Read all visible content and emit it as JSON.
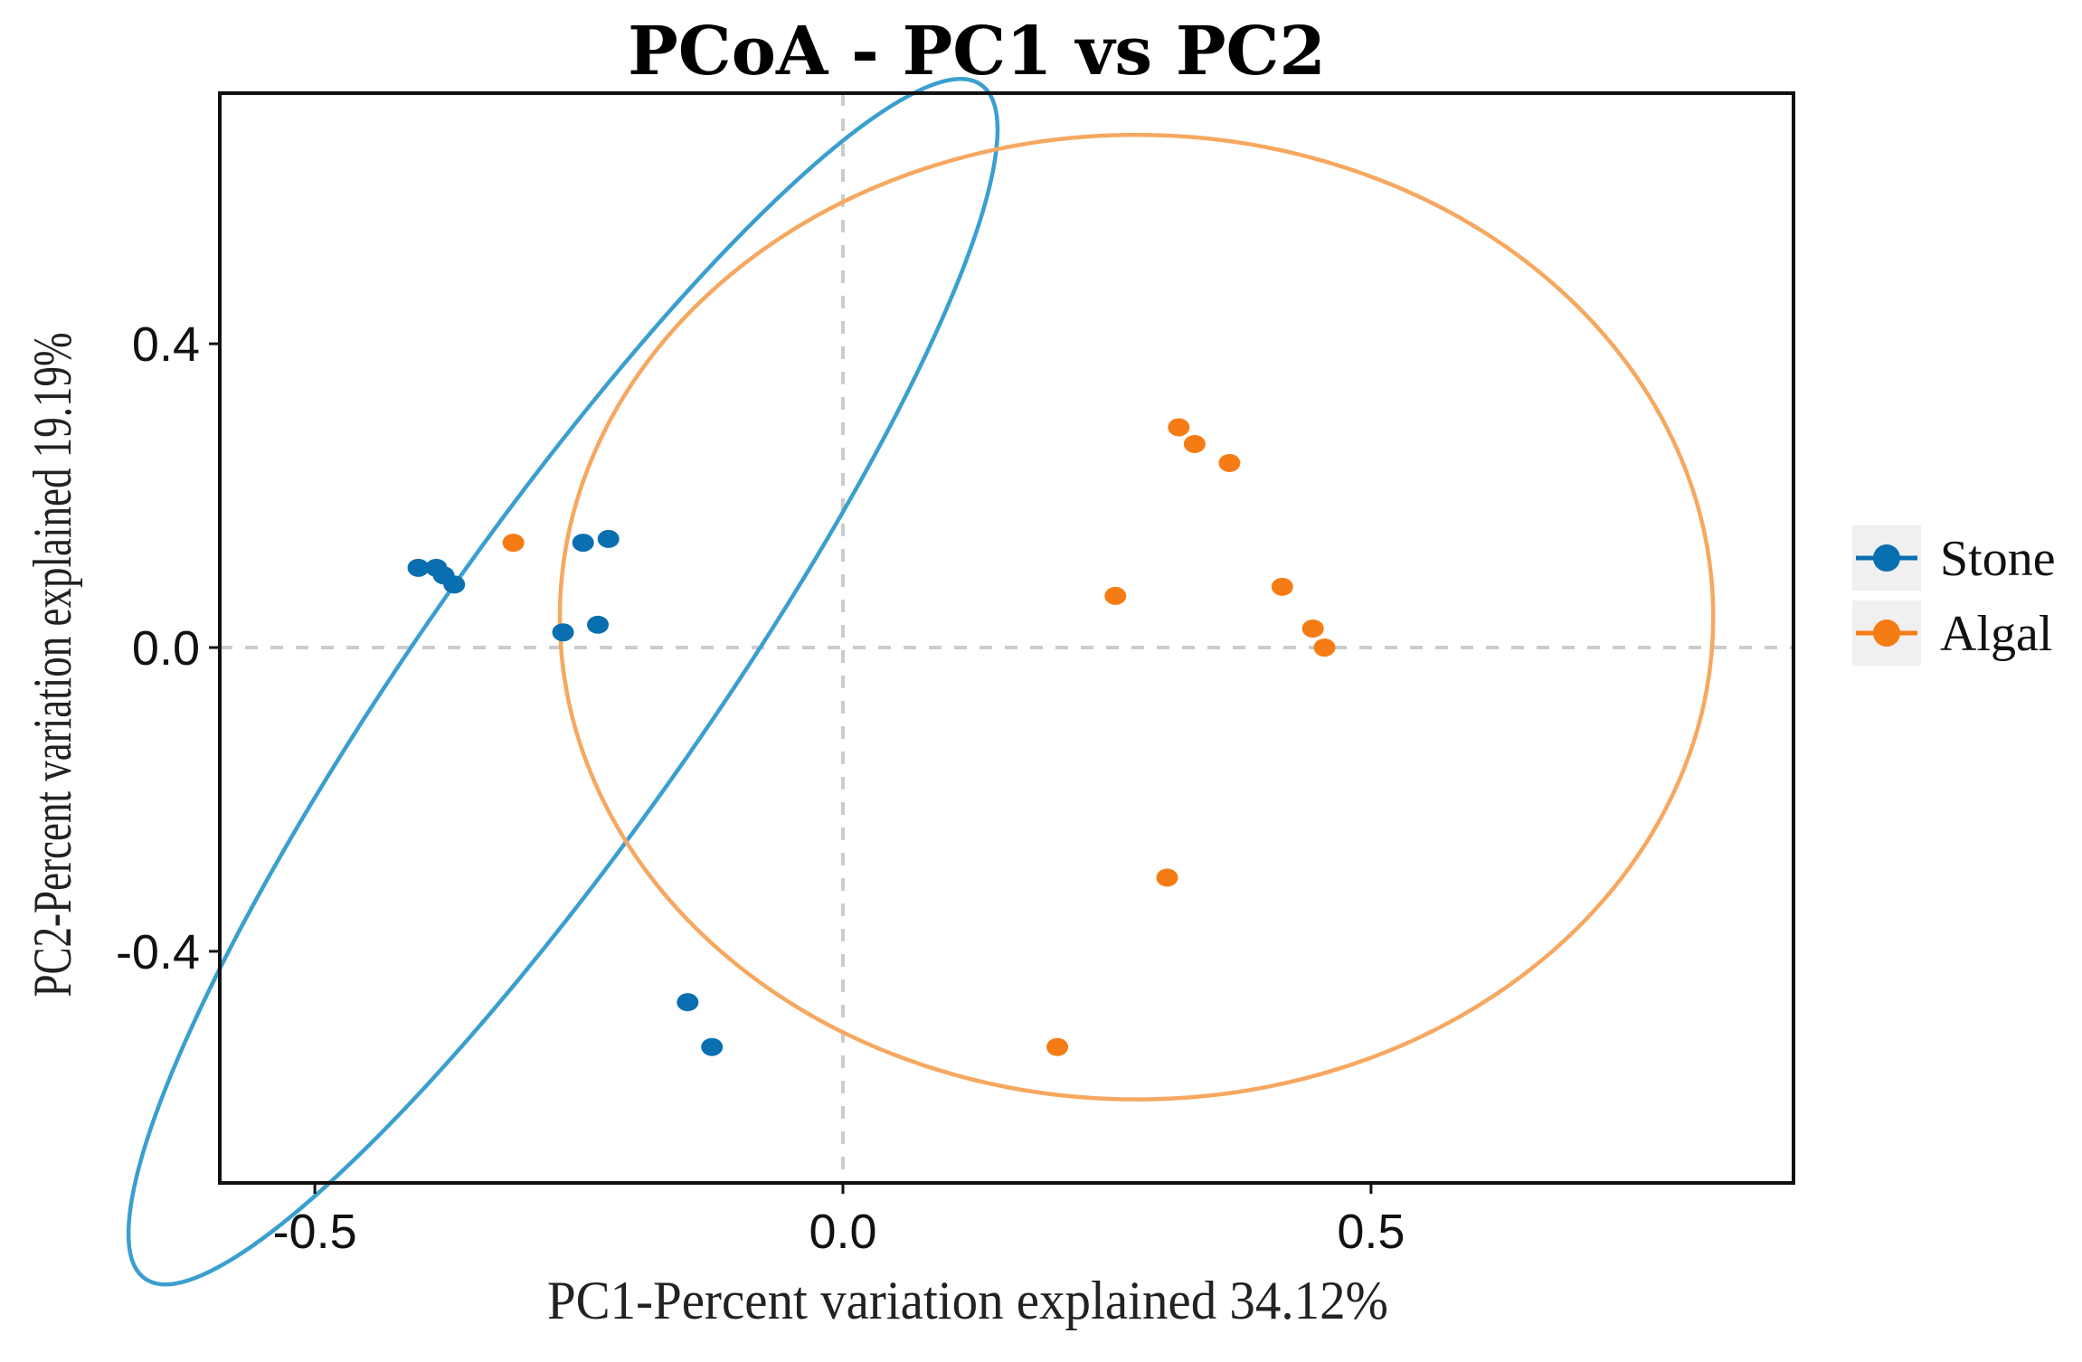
{
  "chart_data": {
    "type": "scatter",
    "title": "PCoA - PC1 vs PC2",
    "xlabel": "PC1-Percent variation explained 34.12%",
    "ylabel": "PC2-Percent variation explained 19.19%",
    "xlim": [
      -0.59,
      0.9
    ],
    "ylim": [
      -0.705,
      0.73
    ],
    "xticks": [
      -0.5,
      0.0,
      0.5
    ],
    "xtick_labels": [
      "-0.5",
      "0.0",
      "0.5"
    ],
    "yticks": [
      0.4,
      0.0,
      -0.4
    ],
    "ytick_labels": [
      "0.4",
      "0.0",
      "-0.4"
    ],
    "reference_lines": {
      "x": 0,
      "y": 0
    },
    "grid": false,
    "legend_position": "right",
    "series": [
      {
        "name": "Stone",
        "color": "#0a6fb0",
        "ellipse_color": "#3a9fcf",
        "points": [
          {
            "x": -0.402,
            "y": 0.105
          },
          {
            "x": -0.385,
            "y": 0.105
          },
          {
            "x": -0.378,
            "y": 0.095
          },
          {
            "x": -0.368,
            "y": 0.083
          },
          {
            "x": -0.265,
            "y": 0.02
          },
          {
            "x": -0.232,
            "y": 0.03
          },
          {
            "x": -0.246,
            "y": 0.138
          },
          {
            "x": -0.222,
            "y": 0.143
          },
          {
            "x": -0.147,
            "y": -0.467
          },
          {
            "x": -0.124,
            "y": -0.526
          }
        ],
        "ellipse": {
          "cx": -0.265,
          "cy": -0.045,
          "rx": 0.69,
          "ry": 0.137,
          "angle_deg": -55
        }
      },
      {
        "name": "Algal",
        "color": "#f57c14",
        "ellipse_color": "#f6a860",
        "points": [
          {
            "x": -0.312,
            "y": 0.138
          },
          {
            "x": 0.258,
            "y": 0.068
          },
          {
            "x": 0.318,
            "y": 0.29
          },
          {
            "x": 0.333,
            "y": 0.268
          },
          {
            "x": 0.366,
            "y": 0.243
          },
          {
            "x": 0.416,
            "y": 0.08
          },
          {
            "x": 0.445,
            "y": 0.025
          },
          {
            "x": 0.456,
            "y": 0.0
          },
          {
            "x": 0.307,
            "y": -0.303
          },
          {
            "x": 0.203,
            "y": -0.526
          }
        ],
        "ellipse": {
          "cx": 0.278,
          "cy": 0.04,
          "rx": 0.546,
          "ry": 0.635,
          "angle_deg": 0
        }
      }
    ]
  }
}
